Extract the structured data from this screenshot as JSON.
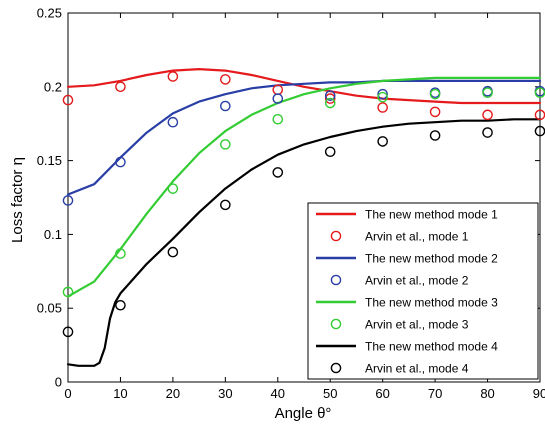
{
  "chart_data": {
    "type": "line",
    "title": "",
    "xlabel": "Angle θ°",
    "ylabel": "Loss factor η",
    "xlim": [
      0,
      90
    ],
    "ylim": [
      0,
      0.25
    ],
    "xticks": [
      0,
      10,
      20,
      30,
      40,
      50,
      60,
      70,
      80,
      90
    ],
    "yticks": [
      0,
      0.05,
      0.1,
      0.15,
      0.2,
      0.25
    ],
    "xtick_labels": [
      "0",
      "10",
      "20",
      "30",
      "40",
      "50",
      "60",
      "70",
      "80",
      "90"
    ],
    "ytick_labels": [
      "0",
      "0.05",
      "0.1",
      "0.15",
      "0.2",
      "0.25"
    ],
    "grid": false,
    "legend_position": "bottom-right",
    "line_series": [
      {
        "name": "The new method mode 1",
        "color": "#e41a1c",
        "x": [
          0,
          5,
          10,
          15,
          20,
          25,
          30,
          35,
          40,
          45,
          50,
          55,
          60,
          65,
          70,
          75,
          80,
          85,
          90
        ],
        "y": [
          0.2,
          0.201,
          0.204,
          0.208,
          0.211,
          0.212,
          0.211,
          0.208,
          0.204,
          0.2,
          0.197,
          0.194,
          0.192,
          0.191,
          0.19,
          0.189,
          0.189,
          0.189,
          0.189
        ]
      },
      {
        "name": "The new method mode 2",
        "color": "#2a3fa6",
        "x": [
          0,
          5,
          10,
          15,
          20,
          25,
          30,
          35,
          40,
          45,
          50,
          55,
          60,
          65,
          70,
          75,
          80,
          85,
          90
        ],
        "y": [
          0.127,
          0.134,
          0.152,
          0.169,
          0.182,
          0.19,
          0.195,
          0.199,
          0.201,
          0.202,
          0.203,
          0.203,
          0.204,
          0.204,
          0.204,
          0.204,
          0.204,
          0.204,
          0.204
        ]
      },
      {
        "name": "The new method mode 3",
        "color": "#33cc33",
        "x": [
          0,
          5,
          10,
          15,
          20,
          25,
          30,
          35,
          40,
          45,
          50,
          55,
          60,
          65,
          70,
          75,
          80,
          85,
          90
        ],
        "y": [
          0.058,
          0.068,
          0.09,
          0.114,
          0.136,
          0.155,
          0.17,
          0.181,
          0.189,
          0.195,
          0.199,
          0.202,
          0.204,
          0.205,
          0.206,
          0.206,
          0.206,
          0.206,
          0.206
        ]
      },
      {
        "name": "The new method mode 4",
        "color": "#000000",
        "x": [
          0,
          2,
          4,
          5,
          6,
          7,
          8,
          9,
          10,
          12,
          15,
          20,
          25,
          30,
          35,
          40,
          45,
          50,
          55,
          60,
          65,
          70,
          75,
          80,
          85,
          90
        ],
        "y": [
          0.012,
          0.011,
          0.011,
          0.011,
          0.013,
          0.023,
          0.043,
          0.054,
          0.06,
          0.068,
          0.08,
          0.097,
          0.115,
          0.131,
          0.144,
          0.154,
          0.161,
          0.166,
          0.17,
          0.173,
          0.175,
          0.176,
          0.177,
          0.177,
          0.178,
          0.178
        ]
      }
    ],
    "marker_series": [
      {
        "name": "Arvin et al., mode 1",
        "color": "#e41a1c",
        "x": [
          0,
          10,
          20,
          30,
          40,
          50,
          60,
          70,
          80,
          90
        ],
        "y": [
          0.191,
          0.2,
          0.207,
          0.205,
          0.198,
          0.192,
          0.186,
          0.183,
          0.181,
          0.181
        ]
      },
      {
        "name": "Arvin et al., mode 2",
        "color": "#2a3fa6",
        "x": [
          0,
          10,
          20,
          30,
          40,
          50,
          60,
          70,
          80,
          90
        ],
        "y": [
          0.123,
          0.149,
          0.176,
          0.187,
          0.192,
          0.194,
          0.195,
          0.196,
          0.197,
          0.197
        ]
      },
      {
        "name": "Arvin et al., mode 3",
        "color": "#33cc33",
        "x": [
          0,
          10,
          20,
          30,
          40,
          50,
          60,
          70,
          80,
          90
        ],
        "y": [
          0.061,
          0.087,
          0.131,
          0.161,
          0.178,
          0.189,
          0.193,
          0.195,
          0.196,
          0.196
        ]
      },
      {
        "name": "Arvin et al., mode 4",
        "color": "#000000",
        "x": [
          0,
          10,
          20,
          30,
          40,
          50,
          60,
          70,
          80,
          90
        ],
        "y": [
          0.034,
          0.052,
          0.088,
          0.12,
          0.142,
          0.156,
          0.163,
          0.167,
          0.169,
          0.17
        ]
      }
    ],
    "legend": [
      {
        "label": "The new method mode 1",
        "style": "line",
        "color": "#e41a1c"
      },
      {
        "label": "Arvin et al., mode 1",
        "style": "marker",
        "color": "#e41a1c"
      },
      {
        "label": "The new method mode 2",
        "style": "line",
        "color": "#2a3fa6"
      },
      {
        "label": "Arvin et al., mode 2",
        "style": "marker",
        "color": "#2a3fa6"
      },
      {
        "label": "The new method mode 3",
        "style": "line",
        "color": "#33cc33"
      },
      {
        "label": "Arvin et al., mode 3",
        "style": "marker",
        "color": "#33cc33"
      },
      {
        "label": "The new method mode 4",
        "style": "line",
        "color": "#000000"
      },
      {
        "label": "Arvin et al., mode 4",
        "style": "marker",
        "color": "#000000"
      }
    ]
  }
}
